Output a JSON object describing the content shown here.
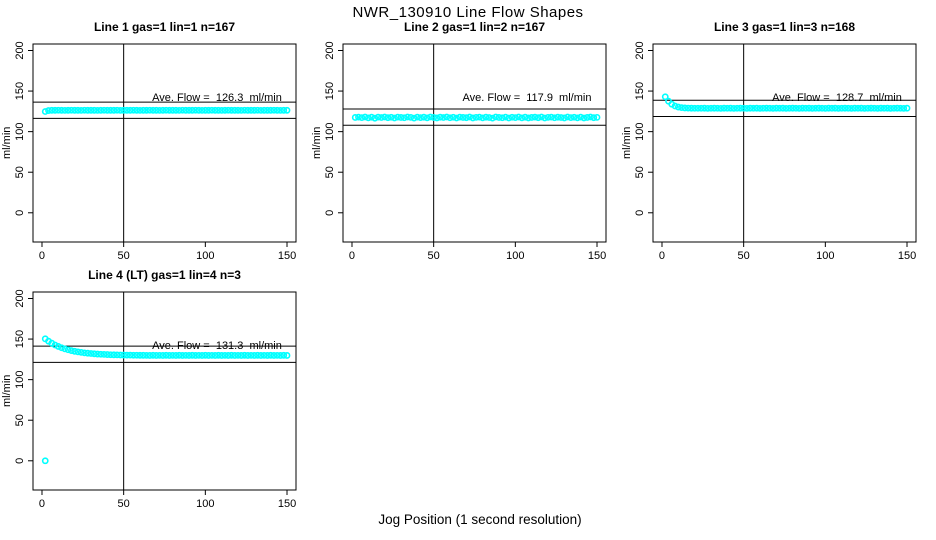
{
  "colors": {
    "background": "#ffffff",
    "point": "#00FFFF",
    "line": "#000000"
  },
  "chart_data": {
    "type": "scatter",
    "title": "NWR_130910  Line Flow Shapes",
    "xlabel": "Jog Position (1 second resolution)",
    "ylabel": "ml/min",
    "xlim": [
      0,
      150
    ],
    "ylim": [
      0,
      200
    ],
    "xticks": [
      0,
      50,
      100,
      150
    ],
    "yticks": [
      0,
      50,
      100,
      150,
      200
    ],
    "grid": false,
    "marker": "open-circle",
    "point_color": "#00FFFF",
    "vline_x": 50,
    "panels": [
      {
        "title": "Line 1 gas=1 lin=1 n=167",
        "n": 167,
        "ave_flow": 126.3,
        "annotation": "Ave. Flow =  126.3  ml/min",
        "hline_upper": 136.3,
        "hline_lower": 116.3,
        "series": {
          "x_start": 2,
          "x_step": 2,
          "y": [
            124.8,
            126.0,
            126.3,
            126.3,
            126.4,
            126.3,
            126.2,
            126.3,
            126.4,
            126.3,
            126.3,
            126.2,
            126.4,
            126.3,
            126.3,
            126.3,
            126.2,
            126.3,
            126.4,
            126.3,
            126.3,
            126.3,
            126.4,
            126.2,
            126.3,
            126.3,
            126.3,
            126.4,
            126.3,
            126.2,
            126.3,
            126.3,
            126.4,
            126.3,
            126.3,
            126.2,
            126.3,
            126.4,
            126.3,
            126.3,
            126.3,
            126.2,
            126.4,
            126.3,
            126.3,
            126.3,
            126.4,
            126.3,
            126.2,
            126.3,
            126.3,
            126.4,
            126.3,
            126.3,
            126.2,
            126.3,
            126.4,
            126.3,
            126.3,
            126.3,
            126.2,
            126.4,
            126.3,
            126.3,
            126.3,
            126.4,
            126.2,
            126.3,
            126.3,
            126.3,
            126.4,
            126.3,
            126.2,
            126.3,
            126.3
          ]
        },
        "extra_points": []
      },
      {
        "title": "Line 2 gas=1 lin=2 n=167",
        "n": 167,
        "ave_flow": 117.9,
        "annotation": "Ave. Flow =  117.9  ml/min",
        "hline_upper": 127.9,
        "hline_lower": 107.9,
        "series": {
          "x_start": 2,
          "x_step": 2,
          "y": [
            117.5,
            117.9,
            117.3,
            118.0,
            117.0,
            117.8,
            116.6,
            117.9,
            117.4,
            118.0,
            117.2,
            117.7,
            116.8,
            117.9,
            117.5,
            117.1,
            118.0,
            117.6,
            116.7,
            117.9,
            117.3,
            117.8,
            117.0,
            118.0,
            117.5,
            116.9,
            117.8,
            117.4,
            118.0,
            117.1,
            117.7,
            116.8,
            117.9,
            117.5,
            117.2,
            118.0,
            116.9,
            117.6,
            117.9,
            117.0,
            117.8,
            117.4,
            116.7,
            118.0,
            117.5,
            117.1,
            117.9,
            116.8,
            117.7,
            117.3,
            118.0,
            117.0,
            117.8,
            116.9,
            117.5,
            117.9,
            117.2,
            118.0,
            116.8,
            117.6,
            117.9,
            117.1,
            117.8,
            117.4,
            116.9,
            118.0,
            117.3,
            117.7,
            117.0,
            117.9,
            116.8,
            117.5,
            118.0,
            117.2,
            117.6
          ]
        },
        "extra_points": []
      },
      {
        "title": "Line 3 gas=1 lin=3 n=168",
        "n": 168,
        "ave_flow": 128.7,
        "annotation": "Ave. Flow =  128.7  ml/min",
        "hline_upper": 138.7,
        "hline_lower": 118.7,
        "series": {
          "x_start": 2,
          "x_step": 2,
          "y": [
            143.0,
            137.5,
            133.8,
            131.6,
            130.3,
            129.6,
            129.2,
            129.0,
            128.9,
            128.8,
            128.8,
            128.8,
            128.9,
            128.7,
            128.8,
            128.9,
            128.8,
            128.7,
            128.9,
            128.8,
            128.9,
            128.7,
            128.8,
            128.9,
            128.8,
            128.7,
            128.9,
            128.8,
            128.9,
            128.7,
            128.8,
            128.9,
            128.8,
            128.7,
            128.9,
            128.8,
            128.9,
            128.7,
            128.8,
            128.9,
            128.8,
            128.7,
            128.9,
            128.8,
            128.9,
            128.7,
            128.8,
            128.9,
            128.8,
            128.7,
            128.9,
            128.8,
            128.9,
            128.7,
            128.8,
            128.9,
            128.8,
            128.7,
            128.9,
            128.8,
            128.9,
            128.7,
            128.8,
            128.9,
            128.8,
            128.7,
            128.9,
            128.8,
            128.9,
            128.7,
            128.8,
            128.9,
            128.8,
            128.7,
            128.9
          ]
        },
        "extra_points": []
      },
      {
        "title": "Line 4 (LT) gas=1 lin=4 n=3",
        "n": 3,
        "ave_flow": 131.3,
        "annotation": "Ave. Flow =  131.3  ml/min",
        "hline_upper": 141.3,
        "hline_lower": 121.3,
        "series": {
          "x_start": 2,
          "x_step": 2,
          "y": [
            150.3,
            147.4,
            144.9,
            142.7,
            140.9,
            139.3,
            137.9,
            136.8,
            135.8,
            134.9,
            134.2,
            133.6,
            133.0,
            132.6,
            132.2,
            131.8,
            131.5,
            131.3,
            131.1,
            130.9,
            130.7,
            130.6,
            130.5,
            130.4,
            130.3,
            130.2,
            130.2,
            130.1,
            130.1,
            130.0,
            130.0,
            129.9,
            129.8,
            130.0,
            129.8,
            129.9,
            129.8,
            130.0,
            129.8,
            129.9,
            129.8,
            130.0,
            129.8,
            129.9,
            129.8,
            130.0,
            129.8,
            129.9,
            129.8,
            130.0,
            129.8,
            129.9,
            129.8,
            130.0,
            129.8,
            129.9,
            129.8,
            130.0,
            129.8,
            129.9,
            129.8,
            130.0,
            129.8,
            129.9,
            129.8,
            130.0,
            129.8,
            129.9,
            129.8,
            130.0,
            129.8,
            129.9,
            129.8,
            130.0,
            129.8
          ]
        },
        "extra_points": [
          [
            2,
            0
          ]
        ]
      }
    ]
  }
}
